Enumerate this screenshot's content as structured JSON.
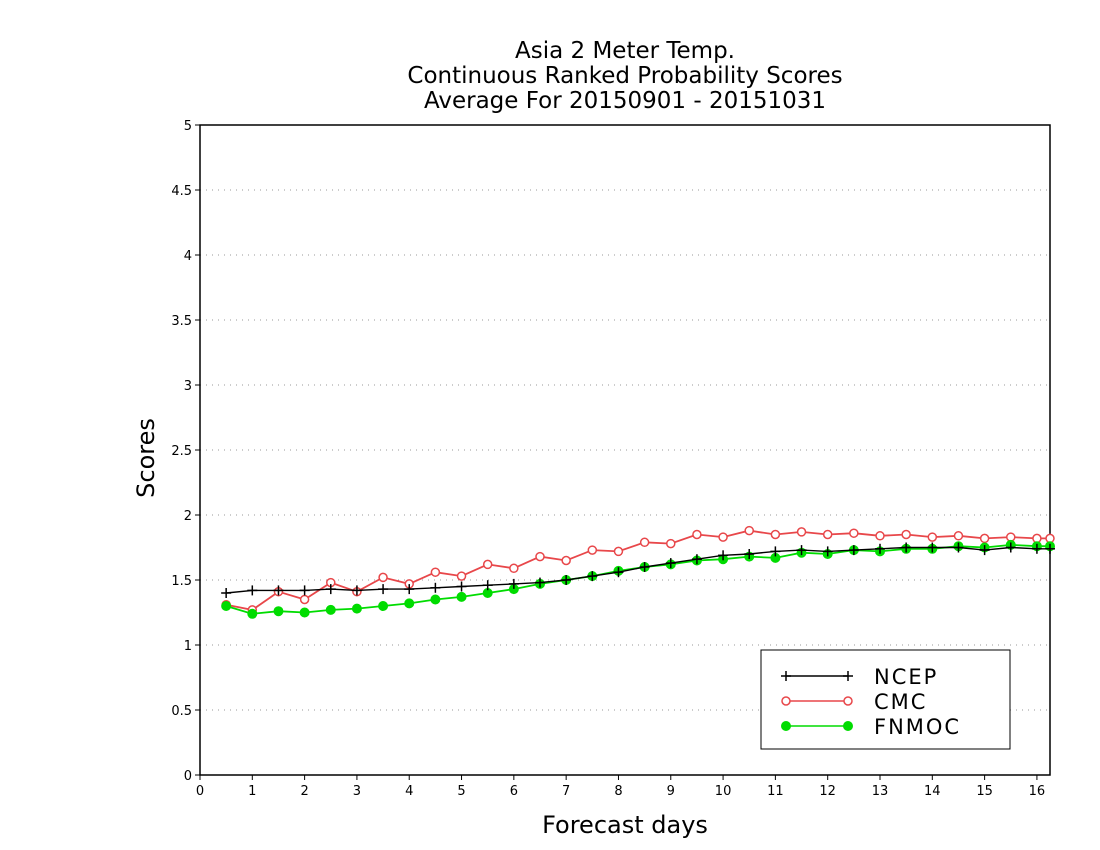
{
  "chart_data": {
    "type": "line",
    "title": [
      "Asia 2 Meter Temp.",
      "Continuous Ranked Probability Scores",
      "Average For 20150901 - 20151031"
    ],
    "xlabel": "Forecast days",
    "ylabel": "Scores",
    "xlim": [
      0,
      16.25
    ],
    "ylim": [
      0,
      5
    ],
    "xticks": [
      "0",
      "1",
      "2",
      "3",
      "4",
      "5",
      "6",
      "7",
      "8",
      "9",
      "10",
      "11",
      "12",
      "13",
      "14",
      "15",
      "16"
    ],
    "yticks": [
      "0",
      "0.5",
      "1",
      "1.5",
      "2",
      "2.5",
      "3",
      "3.5",
      "4",
      "4.5",
      "5"
    ],
    "grid": "horizontal dotted",
    "legend_position": "bottom-right",
    "x": [
      0.5,
      1,
      1.5,
      2,
      2.5,
      3,
      3.5,
      4,
      4.5,
      5,
      5.5,
      6,
      6.5,
      7,
      7.5,
      8,
      8.5,
      9,
      9.5,
      10,
      10.5,
      11,
      11.5,
      12,
      12.5,
      13,
      13.5,
      14,
      14.5,
      15,
      15.5,
      16,
      16.25
    ],
    "series": [
      {
        "name": "NCEP",
        "color": "#000000",
        "marker": "plus",
        "values": [
          1.4,
          1.42,
          1.42,
          1.42,
          1.43,
          1.42,
          1.43,
          1.43,
          1.44,
          1.45,
          1.46,
          1.47,
          1.48,
          1.5,
          1.53,
          1.56,
          1.6,
          1.63,
          1.66,
          1.69,
          1.7,
          1.72,
          1.73,
          1.72,
          1.73,
          1.74,
          1.75,
          1.75,
          1.75,
          1.73,
          1.75,
          1.74,
          1.74
        ]
      },
      {
        "name": "CMC",
        "color": "#e8474a",
        "marker": "open-circle",
        "values": [
          1.31,
          1.27,
          1.41,
          1.35,
          1.48,
          1.41,
          1.52,
          1.47,
          1.56,
          1.53,
          1.62,
          1.59,
          1.68,
          1.65,
          1.73,
          1.72,
          1.79,
          1.78,
          1.85,
          1.83,
          1.88,
          1.85,
          1.87,
          1.85,
          1.86,
          1.84,
          1.85,
          1.83,
          1.84,
          1.82,
          1.83,
          1.82,
          1.82
        ]
      },
      {
        "name": "FNMOC",
        "color": "#00dc00",
        "marker": "filled-circle",
        "values": [
          1.3,
          1.24,
          1.26,
          1.25,
          1.27,
          1.28,
          1.3,
          1.32,
          1.35,
          1.37,
          1.4,
          1.43,
          1.47,
          1.5,
          1.53,
          1.57,
          1.6,
          1.62,
          1.65,
          1.66,
          1.68,
          1.67,
          1.71,
          1.7,
          1.73,
          1.72,
          1.74,
          1.74,
          1.76,
          1.75,
          1.77,
          1.76,
          1.76
        ]
      }
    ]
  }
}
